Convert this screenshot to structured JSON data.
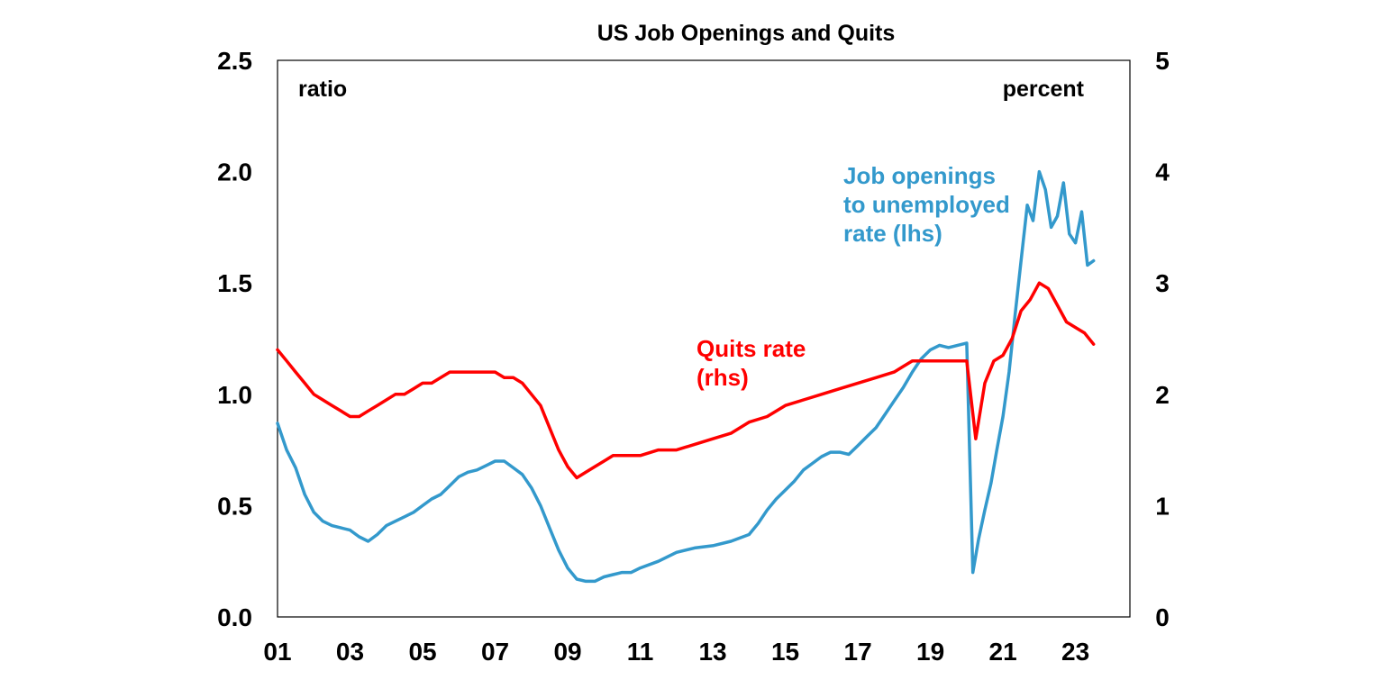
{
  "chart_data": {
    "type": "line",
    "title": "US Job Openings and Quits",
    "left_axis_unit": "ratio",
    "right_axis_unit": "percent",
    "left_ylim": [
      0,
      2.5
    ],
    "right_ylim": [
      0,
      5
    ],
    "left_ticks": [
      "0.0",
      "0.5",
      "1.0",
      "1.5",
      "2.0",
      "2.5"
    ],
    "right_ticks": [
      "0",
      "1",
      "2",
      "3",
      "4",
      "5"
    ],
    "x_range": [
      2001,
      2024.5
    ],
    "x_ticks": [
      {
        "label": "01",
        "year": 2001
      },
      {
        "label": "03",
        "year": 2003
      },
      {
        "label": "05",
        "year": 2005
      },
      {
        "label": "07",
        "year": 2007
      },
      {
        "label": "09",
        "year": 2009
      },
      {
        "label": "11",
        "year": 2011
      },
      {
        "label": "13",
        "year": 2013
      },
      {
        "label": "15",
        "year": 2015
      },
      {
        "label": "17",
        "year": 2017
      },
      {
        "label": "19",
        "year": 2019
      },
      {
        "label": "21",
        "year": 2021
      },
      {
        "label": "23",
        "year": 2023
      }
    ],
    "grid": false,
    "series": [
      {
        "name": "Job openings to unemployed rate (lhs)",
        "label_lines": [
          "Job openings",
          "to unemployed",
          "rate (lhs)"
        ],
        "axis": "left",
        "color": "#3399CC",
        "x": [
          2001.0,
          2001.25,
          2001.5,
          2001.75,
          2002.0,
          2002.25,
          2002.5,
          2002.75,
          2003.0,
          2003.25,
          2003.5,
          2003.75,
          2004.0,
          2004.25,
          2004.5,
          2004.75,
          2005.0,
          2005.25,
          2005.5,
          2005.75,
          2006.0,
          2006.25,
          2006.5,
          2006.75,
          2007.0,
          2007.25,
          2007.5,
          2007.75,
          2008.0,
          2008.25,
          2008.5,
          2008.75,
          2009.0,
          2009.25,
          2009.5,
          2009.75,
          2010.0,
          2010.25,
          2010.5,
          2010.75,
          2011.0,
          2011.5,
          2012.0,
          2012.5,
          2013.0,
          2013.5,
          2014.0,
          2014.25,
          2014.5,
          2014.75,
          2015.0,
          2015.25,
          2015.5,
          2015.75,
          2016.0,
          2016.25,
          2016.5,
          2016.75,
          2017.0,
          2017.25,
          2017.5,
          2017.75,
          2018.0,
          2018.25,
          2018.5,
          2018.75,
          2019.0,
          2019.25,
          2019.5,
          2019.75,
          2020.0,
          2020.17,
          2020.33,
          2020.5,
          2020.67,
          2020.83,
          2021.0,
          2021.17,
          2021.33,
          2021.5,
          2021.67,
          2021.83,
          2022.0,
          2022.17,
          2022.33,
          2022.5,
          2022.67,
          2022.83,
          2023.0,
          2023.17,
          2023.33,
          2023.5
        ],
        "values": [
          0.87,
          0.75,
          0.67,
          0.55,
          0.47,
          0.43,
          0.41,
          0.4,
          0.39,
          0.36,
          0.34,
          0.37,
          0.41,
          0.43,
          0.45,
          0.47,
          0.5,
          0.53,
          0.55,
          0.59,
          0.63,
          0.65,
          0.66,
          0.68,
          0.7,
          0.7,
          0.67,
          0.64,
          0.58,
          0.5,
          0.4,
          0.3,
          0.22,
          0.17,
          0.16,
          0.16,
          0.18,
          0.19,
          0.2,
          0.2,
          0.22,
          0.25,
          0.29,
          0.31,
          0.32,
          0.34,
          0.37,
          0.42,
          0.48,
          0.53,
          0.57,
          0.61,
          0.66,
          0.69,
          0.72,
          0.74,
          0.74,
          0.73,
          0.77,
          0.81,
          0.85,
          0.91,
          0.97,
          1.03,
          1.1,
          1.16,
          1.2,
          1.22,
          1.21,
          1.22,
          1.23,
          0.2,
          0.35,
          0.48,
          0.6,
          0.75,
          0.9,
          1.1,
          1.35,
          1.6,
          1.85,
          1.78,
          2.0,
          1.92,
          1.75,
          1.8,
          1.95,
          1.72,
          1.68,
          1.82,
          1.58,
          1.6
        ]
      },
      {
        "name": "Quits rate (rhs)",
        "label_lines": [
          "Quits rate",
          "(rhs)"
        ],
        "axis": "right",
        "color": "#FF0000",
        "x": [
          2001.0,
          2001.25,
          2001.5,
          2001.75,
          2002.0,
          2002.25,
          2002.5,
          2002.75,
          2003.0,
          2003.25,
          2003.5,
          2003.75,
          2004.0,
          2004.25,
          2004.5,
          2004.75,
          2005.0,
          2005.25,
          2005.5,
          2005.75,
          2006.0,
          2006.25,
          2006.5,
          2006.75,
          2007.0,
          2007.25,
          2007.5,
          2007.75,
          2008.0,
          2008.25,
          2008.5,
          2008.75,
          2009.0,
          2009.25,
          2009.5,
          2009.75,
          2010.0,
          2010.25,
          2010.5,
          2010.75,
          2011.0,
          2011.5,
          2012.0,
          2012.5,
          2013.0,
          2013.5,
          2014.0,
          2014.5,
          2015.0,
          2015.5,
          2016.0,
          2016.5,
          2017.0,
          2017.5,
          2018.0,
          2018.25,
          2018.5,
          2018.75,
          2019.0,
          2019.5,
          2020.0,
          2020.25,
          2020.5,
          2020.75,
          2021.0,
          2021.25,
          2021.5,
          2021.75,
          2022.0,
          2022.25,
          2022.5,
          2022.75,
          2023.0,
          2023.25,
          2023.5
        ],
        "values": [
          2.4,
          2.3,
          2.2,
          2.1,
          2.0,
          1.95,
          1.9,
          1.85,
          1.8,
          1.8,
          1.85,
          1.9,
          1.95,
          2.0,
          2.0,
          2.05,
          2.1,
          2.1,
          2.15,
          2.2,
          2.2,
          2.2,
          2.2,
          2.2,
          2.2,
          2.15,
          2.15,
          2.1,
          2.0,
          1.9,
          1.7,
          1.5,
          1.35,
          1.25,
          1.3,
          1.35,
          1.4,
          1.45,
          1.45,
          1.45,
          1.45,
          1.5,
          1.5,
          1.55,
          1.6,
          1.65,
          1.75,
          1.8,
          1.9,
          1.95,
          2.0,
          2.05,
          2.1,
          2.15,
          2.2,
          2.25,
          2.3,
          2.3,
          2.3,
          2.3,
          2.3,
          1.6,
          2.1,
          2.3,
          2.35,
          2.5,
          2.75,
          2.85,
          3.0,
          2.95,
          2.8,
          2.65,
          2.6,
          2.55,
          2.45
        ]
      }
    ]
  }
}
